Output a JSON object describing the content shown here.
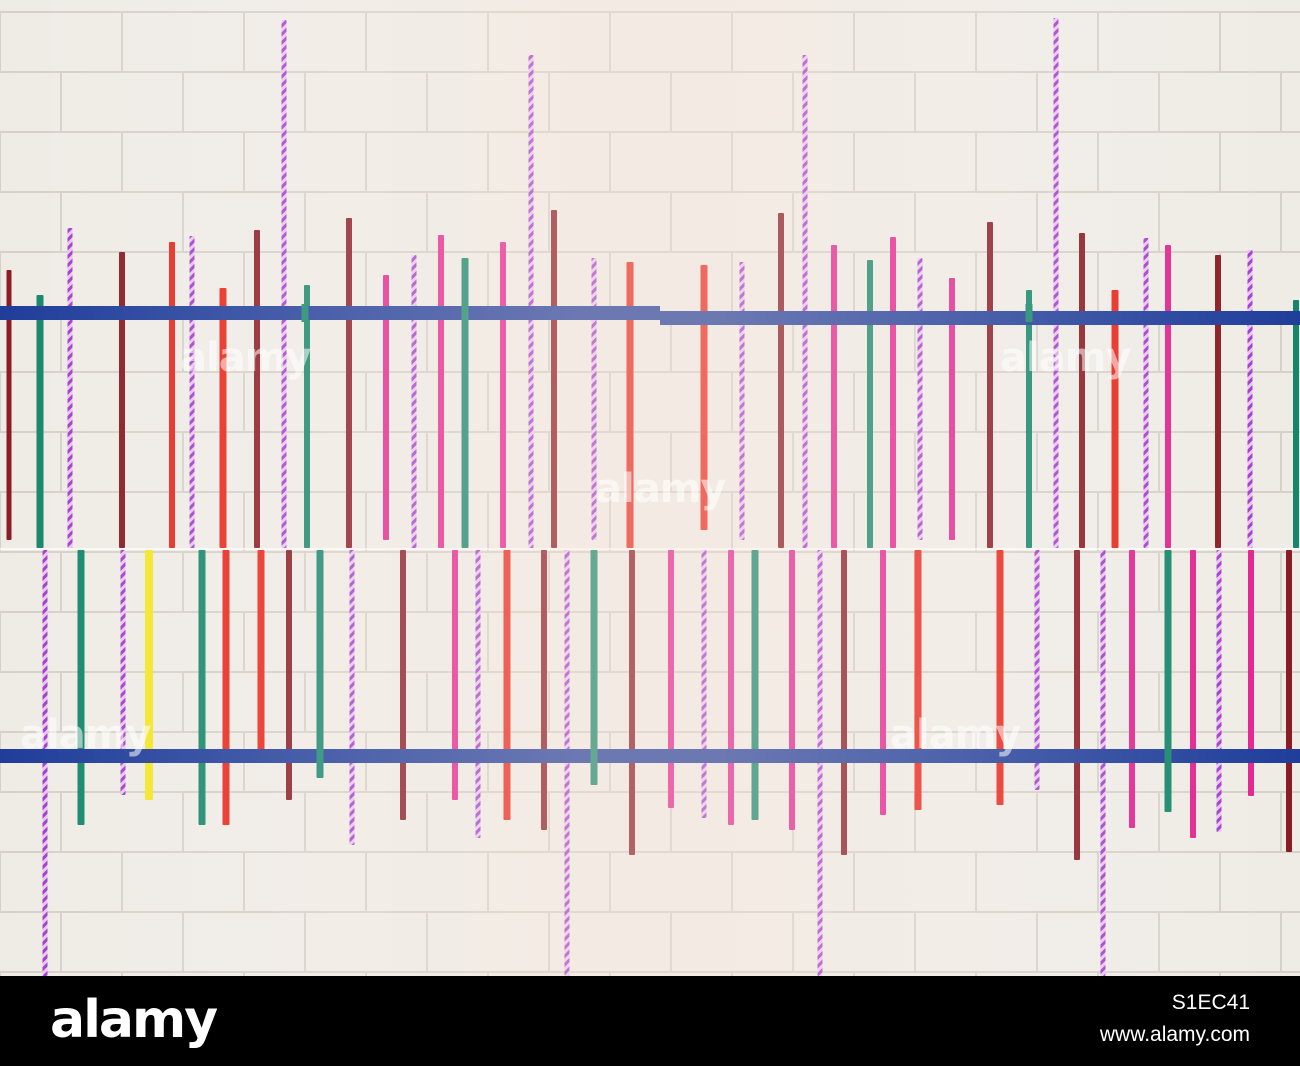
{
  "image": {
    "description_type": "photo",
    "colors": {
      "wall": "#efece6",
      "mortar": "#d6d1c8",
      "blue_tape": "#1f3d9a",
      "tape_palette": [
        "#8a1a24",
        "#15866a",
        "#b73fd1",
        "#e3238f",
        "#e8261b",
        "#a0193e",
        "#f2e623"
      ]
    }
  },
  "watermarks": [
    "alamy",
    "alamy",
    "alamy",
    "alamy",
    "alamy"
  ],
  "footer": {
    "logo": "alamy",
    "image_id": "S1EC41",
    "url": "www.alamy.com",
    "background": "#000000"
  }
}
